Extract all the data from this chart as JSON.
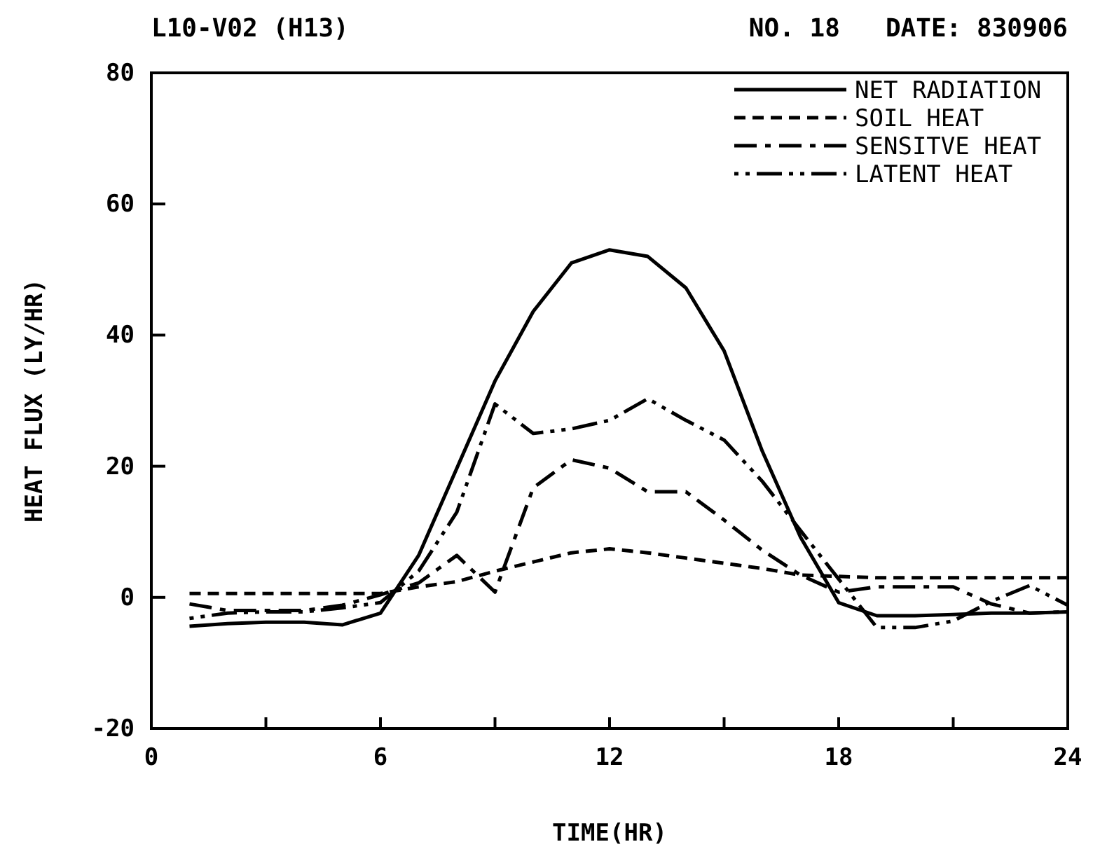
{
  "chart_data": {
    "type": "line",
    "title": "L10-V02 (H13)",
    "subtitle": "NO. 18   DATE: 830906",
    "xlabel": "TIME(HR)",
    "ylabel": "HEAT FLUX (LY/HR)",
    "x": [
      1,
      2,
      3,
      4,
      5,
      6,
      7,
      8,
      9,
      10,
      11,
      12,
      13,
      14,
      15,
      16,
      17,
      18,
      19,
      20,
      21,
      22,
      23,
      24
    ],
    "series": [
      {
        "name": "NET RADIATION",
        "color": "#000000",
        "line_style": "solid",
        "values": [
          -4.4,
          -4,
          -3.8,
          -3.8,
          -4.2,
          -2.4,
          6.4,
          19.7,
          33,
          43.6,
          51,
          53,
          52,
          47.2,
          37.6,
          22.3,
          9.2,
          -0.8,
          -2.8,
          -2.8,
          -2.6,
          -2.4,
          -2.4,
          -2.2
        ]
      },
      {
        "name": "SOIL HEAT",
        "color": "#000000",
        "line_style": "dashed",
        "values": [
          0.6,
          0.6,
          0.6,
          0.6,
          0.6,
          0.6,
          1.6,
          2.4,
          4,
          5.4,
          6.8,
          7.4,
          6.8,
          6,
          5.2,
          4.4,
          3.4,
          3.2,
          3,
          3,
          3,
          3,
          3,
          3
        ]
      },
      {
        "name": "SENSITVE HEAT",
        "color": "#000000",
        "line_style": "dashdot",
        "values": [
          -1,
          -2,
          -2,
          -2,
          -1.2,
          0.4,
          2.2,
          6.4,
          0.8,
          16.7,
          21,
          19.7,
          16.1,
          16.1,
          11.8,
          7.2,
          3.4,
          0.8,
          1.6,
          1.6,
          1.6,
          -1,
          -2.4,
          -2.2
        ]
      },
      {
        "name": "LATENT HEAT",
        "color": "#000000",
        "line_style": "dashdotdot",
        "values": [
          -3.2,
          -2.4,
          -2.2,
          -2.2,
          -1.6,
          -0.8,
          4,
          13,
          29.5,
          25,
          25.7,
          27,
          30.3,
          27,
          24,
          17.7,
          10.2,
          2.8,
          -4.6,
          -4.6,
          -3.6,
          -0.6,
          1.8,
          -1.2
        ]
      }
    ],
    "xlim": [
      0,
      24
    ],
    "xticks": [
      0,
      {
        "value": 3,
        "label": null
      },
      6,
      {
        "value": 9,
        "label": null
      },
      12,
      {
        "value": 15,
        "label": null
      },
      18,
      {
        "value": 21,
        "label": null
      },
      24
    ],
    "ylim": [
      -20,
      80
    ],
    "yticks": [
      -20,
      0,
      20,
      40,
      60,
      80
    ],
    "grid": false,
    "legend": "top right",
    "marker": "none"
  }
}
